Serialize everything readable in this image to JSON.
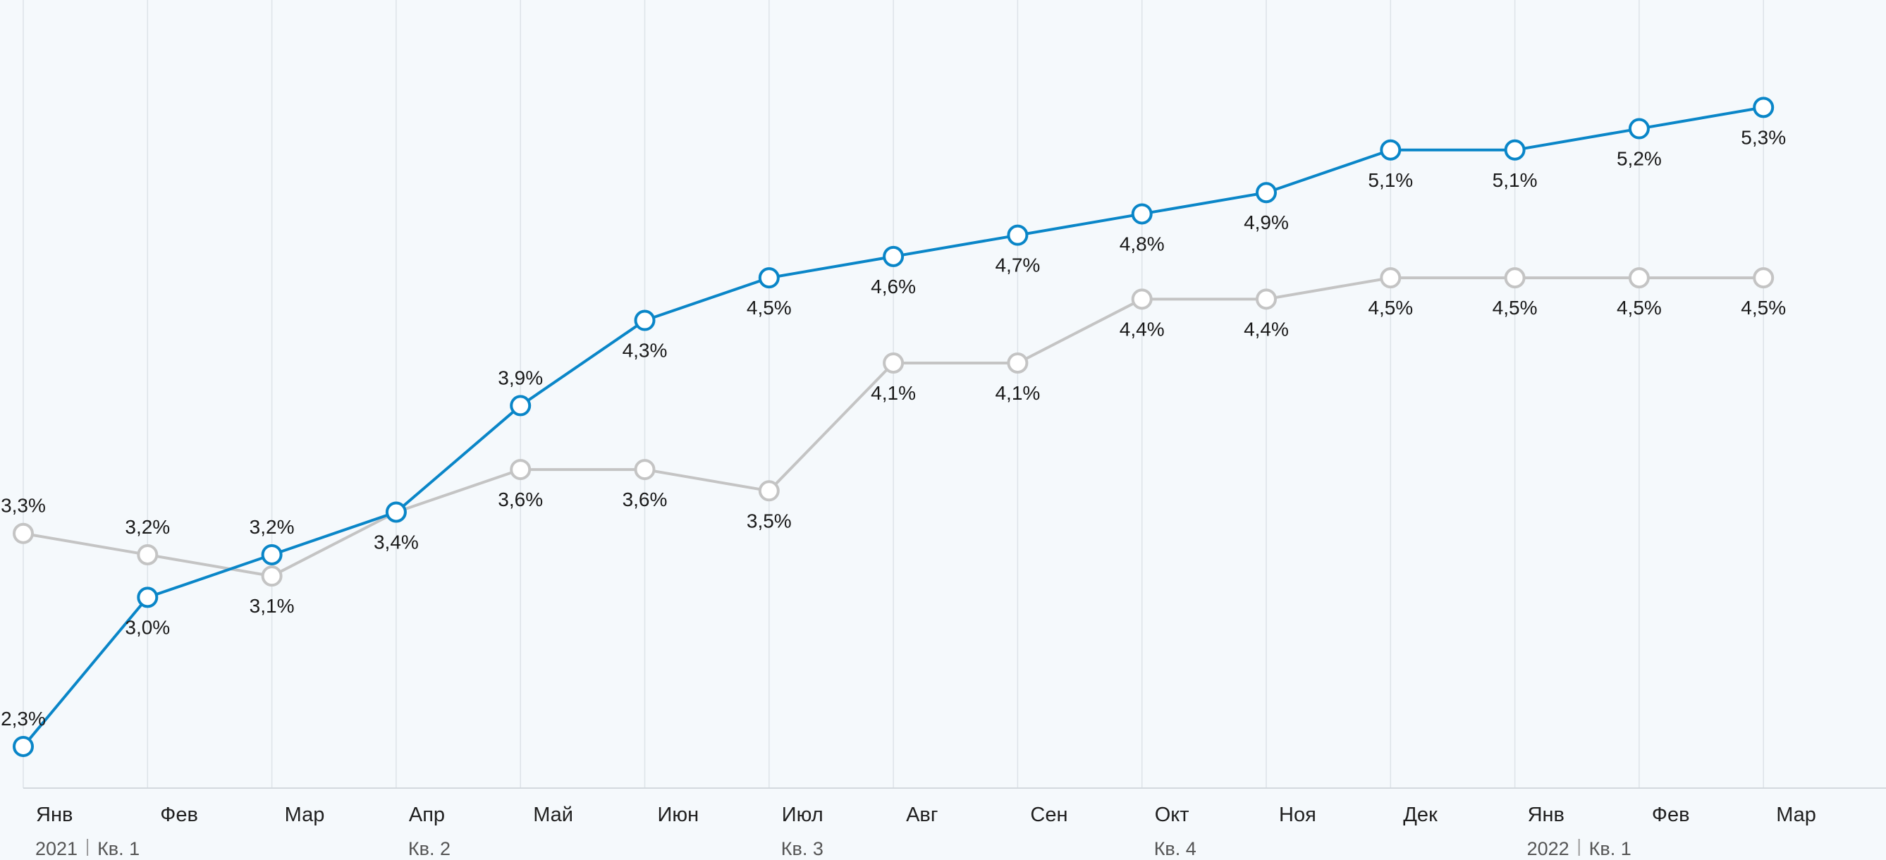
{
  "chart_data": {
    "type": "line",
    "title": "",
    "xlabel": "",
    "ylabel": "",
    "ylim": [
      2.0,
      5.5
    ],
    "grid": "vertical",
    "categories": [
      "Янв",
      "Фев",
      "Мар",
      "Апр",
      "Май",
      "Июн",
      "Июл",
      "Авг",
      "Сен",
      "Окт",
      "Ноя",
      "Дек",
      "Янв",
      "Фев",
      "Мар"
    ],
    "period_labels": [
      {
        "year": "2021",
        "quarter": "Кв. 1",
        "start_index": 0
      },
      {
        "year": "",
        "quarter": "Кв. 2",
        "start_index": 3
      },
      {
        "year": "",
        "quarter": "Кв. 3",
        "start_index": 6
      },
      {
        "year": "",
        "quarter": "Кв. 4",
        "start_index": 9
      },
      {
        "year": "2022",
        "quarter": "Кв. 1",
        "start_index": 12
      }
    ],
    "series": [
      {
        "color": "#0a86c8",
        "values": [
          2.3,
          3.0,
          3.2,
          3.4,
          3.9,
          4.3,
          4.5,
          4.6,
          4.7,
          4.8,
          4.9,
          5.1,
          5.1,
          5.2,
          5.3
        ],
        "labels": [
          "2,3%",
          "3,0%",
          "3,2%",
          "3,4%",
          "3,9%",
          "4,3%",
          "4,5%",
          "4,6%",
          "4,7%",
          "4,8%",
          "4,9%",
          "5,1%",
          "5,1%",
          "5,2%",
          "5,3%"
        ]
      },
      {
        "color": "#c4c4c4",
        "values": [
          3.3,
          3.2,
          3.1,
          3.4,
          3.6,
          3.6,
          3.5,
          4.1,
          4.1,
          4.4,
          4.4,
          4.5,
          4.5,
          4.5,
          4.5
        ],
        "labels": [
          "3,3%",
          "3,2%",
          "3,1%",
          "",
          "3,6%",
          "3,6%",
          "3,5%",
          "4,1%",
          "4,1%",
          "4,4%",
          "4,4%",
          "4,5%",
          "4,5%",
          "4,5%",
          "4,5%"
        ]
      }
    ]
  }
}
